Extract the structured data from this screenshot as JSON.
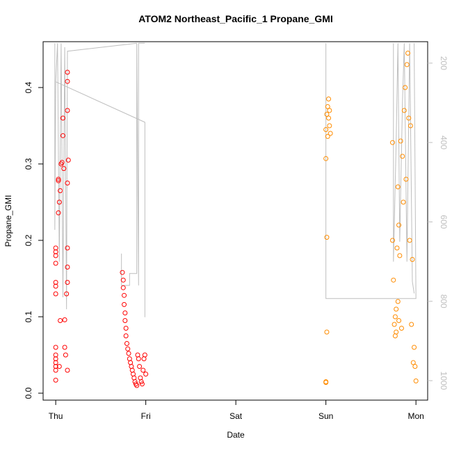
{
  "chart_data": {
    "type": "scatter",
    "title": "ATOM2 Northeast_Pacific_1 Propane_GMI",
    "x_label": "Date",
    "y_label": "Propane_GMI",
    "xlim": [
      -0.14,
      4.13
    ],
    "xticks": [
      {
        "value": 0,
        "label": "Thu"
      },
      {
        "value": 1,
        "label": "Fri"
      },
      {
        "value": 2,
        "label": "Sat"
      },
      {
        "value": 3,
        "label": "Sun"
      },
      {
        "value": 4,
        "label": "Mon"
      }
    ],
    "ylim": [
      -0.0091,
      0.46
    ],
    "yticks": [
      {
        "value": 0,
        "label": "0.0"
      },
      0.1,
      0.2,
      0.3,
      0.4
    ],
    "y2lim": [
      1049,
      146
    ],
    "y2ticks": [
      200,
      400,
      600,
      800,
      1000
    ],
    "y2_color": "#bebebe",
    "series": [
      {
        "color": "#ff0000",
        "style": "points",
        "x": [
          0,
          0,
          0,
          0,
          0,
          0,
          0,
          0,
          0,
          0,
          0,
          0,
          0,
          0,
          0.03,
          0.03,
          0.03,
          0.04,
          0.05,
          0.06,
          0.07,
          0.08,
          0.08,
          0.09,
          0.1,
          0.04,
          0.05,
          0.13,
          0.13,
          0.13,
          0.14,
          0.13,
          0.13,
          0.13,
          0.13,
          0.12,
          0.1,
          0.13,
          0.11,
          0.74,
          0.75,
          0.75,
          0.76,
          0.76,
          0.77,
          0.77,
          0.78,
          0.78,
          0.79,
          0.8,
          0.81,
          0.82,
          0.83,
          0.84,
          0.85,
          0.86,
          0.87,
          0.88,
          0.89,
          0.9,
          0.91,
          0.92,
          0.93,
          0.94,
          0.95,
          0.96,
          0.97,
          0.98,
          0.99,
          1.0
        ],
        "values": [
          0.19,
          0.185,
          0.18,
          0.17,
          0.145,
          0.14,
          0.13,
          0.06,
          0.05,
          0.045,
          0.04,
          0.035,
          0.03,
          0.017,
          0.28,
          0.278,
          0.236,
          0.25,
          0.265,
          0.3,
          0.302,
          0.337,
          0.36,
          0.294,
          0.06,
          0.035,
          0.095,
          0.42,
          0.408,
          0.37,
          0.305,
          0.275,
          0.19,
          0.165,
          0.145,
          0.13,
          0.096,
          0.03,
          0.05,
          0.158,
          0.148,
          0.138,
          0.128,
          0.116,
          0.105,
          0.095,
          0.085,
          0.075,
          0.065,
          0.058,
          0.052,
          0.045,
          0.04,
          0.035,
          0.03,
          0.025,
          0.02,
          0.015,
          0.012,
          0.01,
          0.05,
          0.045,
          0.035,
          0.02,
          0.015,
          0.012,
          0.03,
          0.045,
          0.05,
          0.025
        ]
      },
      {
        "color": "#ff8c00",
        "style": "points",
        "x": [
          3.03,
          3.02,
          3.04,
          3.01,
          3.03,
          3.04,
          3.0,
          3.05,
          3.02,
          3.0,
          3.01,
          3.01,
          3.0,
          3.0,
          3.74,
          3.74,
          3.75,
          3.76,
          3.77,
          3.77,
          3.78,
          3.78,
          3.79,
          3.8,
          3.8,
          3.81,
          3.81,
          3.82,
          3.83,
          3.84,
          3.85,
          3.86,
          3.87,
          3.88,
          3.89,
          3.9,
          3.91,
          3.92,
          3.93,
          3.94,
          3.95,
          3.96,
          3.97,
          3.98,
          3.99,
          4.0
        ],
        "values": [
          0.385,
          0.375,
          0.37,
          0.365,
          0.36,
          0.35,
          0.345,
          0.34,
          0.336,
          0.307,
          0.204,
          0.08,
          0.015,
          0.014,
          0.328,
          0.2,
          0.148,
          0.09,
          0.075,
          0.1,
          0.08,
          0.11,
          0.19,
          0.12,
          0.27,
          0.22,
          0.095,
          0.18,
          0.33,
          0.085,
          0.31,
          0.25,
          0.37,
          0.4,
          0.28,
          0.43,
          0.445,
          0.36,
          0.2,
          0.35,
          0.09,
          0.175,
          0.04,
          0.06,
          0.035,
          0.016
        ]
      },
      {
        "color": "#bebebe",
        "style": "line",
        "axis": "y2",
        "x": [
          -0.01,
          -0.01,
          0,
          0.02,
          0.04,
          0.06,
          0.08,
          0.1,
          0.12,
          0.13,
          0.9,
          null,
          0,
          0.99,
          0.99,
          null,
          0.73,
          0.73,
          0.82,
          0.82,
          0.9,
          0.9,
          0.92,
          0.92,
          0.99,
          null,
          3.0,
          3.0,
          4.0,
          3.98,
          null,
          3.75,
          3.75,
          3.78,
          3.8,
          3.82,
          3.85,
          3.87,
          3.9,
          3.93,
          3.96,
          3.98
        ],
        "values": [
          150,
          620,
          247,
          150,
          700,
          150,
          790,
          160,
          820,
          170,
          150,
          null,
          247,
          349,
          840,
          null,
          680,
          760,
          760,
          730,
          730,
          150,
          760,
          150,
          150,
          null,
          150,
          793,
          793,
          150,
          null,
          150,
          700,
          400,
          150,
          650,
          300,
          150,
          700,
          150,
          750,
          780
        ]
      }
    ]
  }
}
